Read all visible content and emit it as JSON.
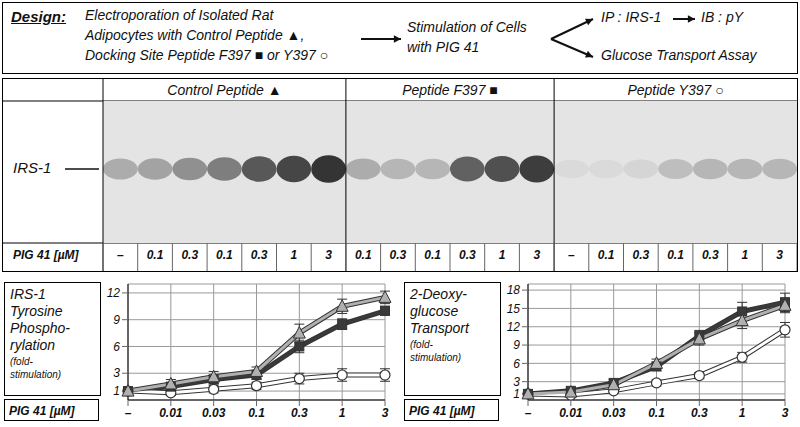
{
  "design": {
    "label": "Design:",
    "step1": [
      "Electroporation of Isolated Rat",
      "Adipocytes with Control Peptide ▲,",
      "Docking Site Peptide F397 ■ or Y397 ○"
    ],
    "step2": [
      "Stimulation of Cells",
      "with PIG 41"
    ],
    "branch1": [
      "IP : IRS-1",
      "IB : pY"
    ],
    "branch2": "Glucose Transport Assay"
  },
  "blot": {
    "band_label": "IRS-1",
    "dose_label": "PIG 41 [µM]",
    "groups": [
      {
        "name": "Control Peptide ▲",
        "doses": [
          "–",
          "0.1",
          "0.3",
          "0.1",
          "0.3",
          "1",
          "3"
        ]
      },
      {
        "name": "Peptide F397 ■",
        "doses": [
          "0.1",
          "0.3",
          "0.1",
          "0.3",
          "1",
          "3"
        ]
      },
      {
        "name": "Peptide Y397 ○",
        "doses": [
          "–",
          "0.1",
          "0.3",
          "0.1",
          "0.3",
          "1",
          "3"
        ]
      }
    ]
  },
  "chart_data": [
    {
      "type": "line",
      "ylabel": [
        "IRS-1",
        "Tyrosine",
        "Phospho-",
        "rylation"
      ],
      "ylabel_note": [
        "(fold-",
        "stimulation)"
      ],
      "xlabel": "PIG 41 [µM]",
      "categories": [
        "–",
        "0.01",
        "0.03",
        "0.1",
        "0.3",
        "1",
        "3"
      ],
      "ylim": [
        0,
        13
      ],
      "yticks": [
        1,
        3,
        6,
        9,
        12
      ],
      "grid": true,
      "series": [
        {
          "color": "#b0b0b0",
          "marker": "triangle",
          "values": [
            1,
            1.8,
            2.6,
            3.2,
            7.5,
            10.5,
            11.5
          ],
          "errors": [
            0.3,
            0.5,
            0.6,
            0.5,
            1.0,
            0.8,
            0.7
          ]
        },
        {
          "color": "#3a3a3a",
          "marker": "square",
          "values": [
            1,
            1.5,
            2.3,
            2.8,
            6,
            8.5,
            10
          ],
          "errors": [
            0.3,
            0.4,
            0.5,
            0.5,
            0.7,
            0.6,
            0.5
          ]
        },
        {
          "color": "#ffffff",
          "marker": "circle",
          "values": [
            1,
            0.8,
            1.2,
            1.6,
            2.4,
            2.8,
            2.8
          ],
          "errors": [
            0.3,
            0.3,
            0.4,
            0.4,
            0.6,
            0.7,
            0.7
          ]
        }
      ]
    },
    {
      "type": "line",
      "ylabel": [
        "2-Deoxy-",
        "glucose",
        "Transport"
      ],
      "ylabel_note": [
        "(fold-",
        "stimulation)"
      ],
      "xlabel": "PIG 41 [µM]",
      "categories": [
        "–",
        "0.01",
        "0.03",
        "0.1",
        "0.3",
        "1",
        "3"
      ],
      "ylim": [
        0,
        19
      ],
      "yticks": [
        1,
        3,
        6,
        9,
        12,
        15,
        18
      ],
      "grid": true,
      "series": [
        {
          "color": "#b0b0b0",
          "marker": "triangle",
          "values": [
            1,
            1.3,
            2.5,
            6,
            10,
            13,
            15.5
          ],
          "errors": [
            0.3,
            0.4,
            0.5,
            0.7,
            1.0,
            1.3,
            1.2
          ]
        },
        {
          "color": "#3a3a3a",
          "marker": "square",
          "values": [
            1,
            1.5,
            2.8,
            5.5,
            10.5,
            14.5,
            16
          ],
          "errors": [
            0.3,
            0.4,
            0.5,
            0.7,
            0.9,
            1.5,
            1.5
          ]
        },
        {
          "color": "#ffffff",
          "marker": "circle",
          "values": [
            1,
            0.8,
            1.5,
            2.8,
            4,
            7,
            11.5
          ],
          "errors": [
            0.3,
            0.3,
            0.4,
            0.5,
            0.5,
            0.8,
            1.2
          ]
        }
      ]
    }
  ]
}
